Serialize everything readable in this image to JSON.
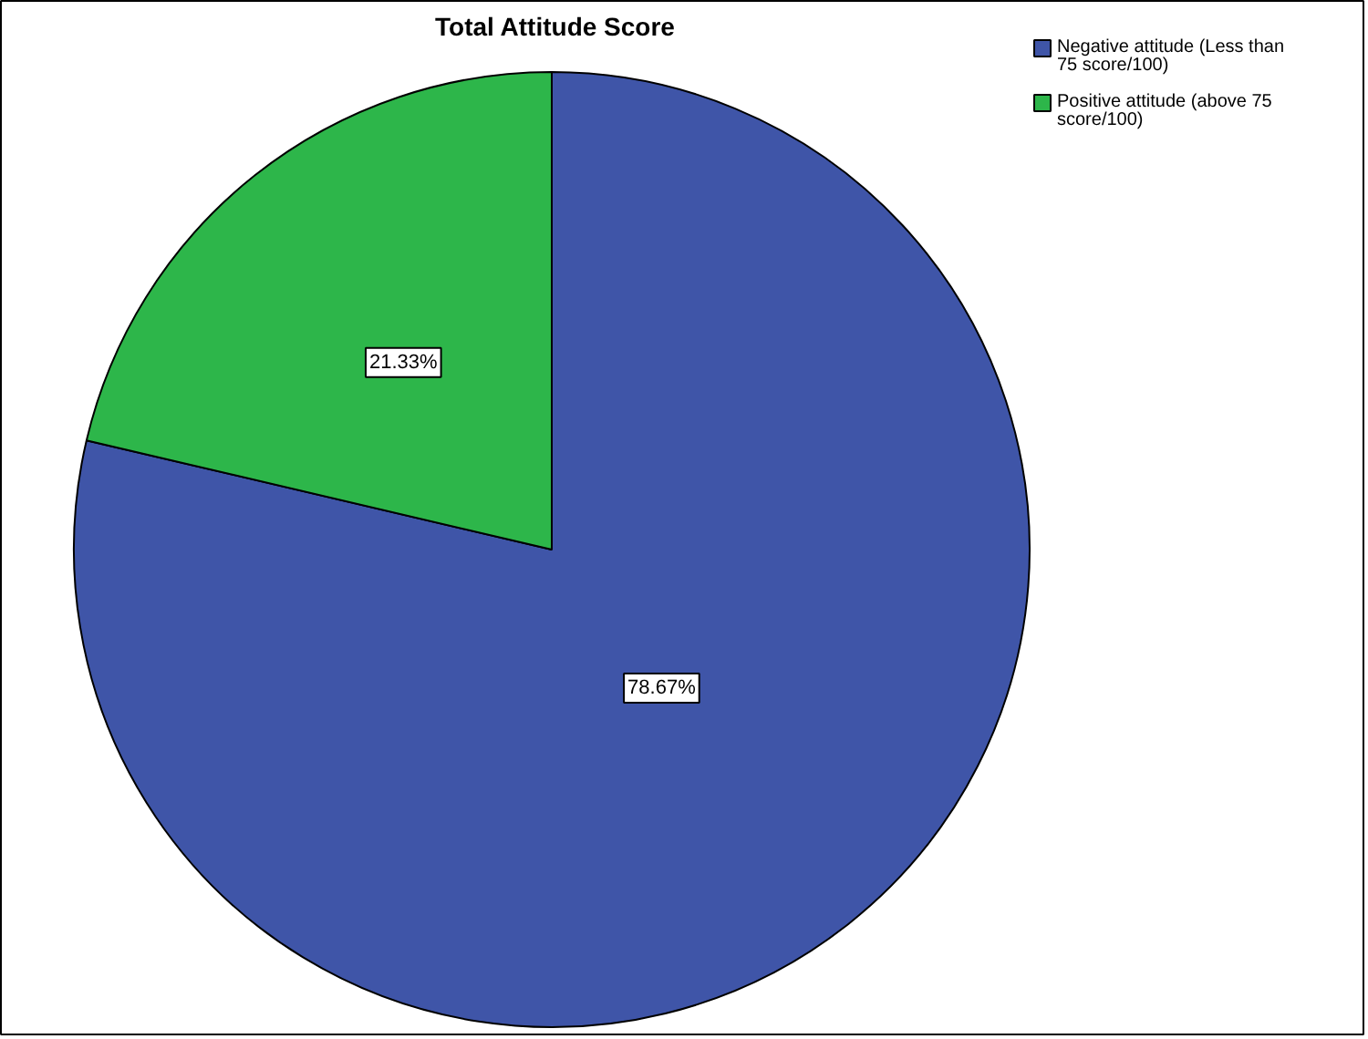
{
  "chart_data": {
    "type": "pie",
    "title": "Total Attitude Score",
    "categories": [
      "Negative attitude (Less than 75 score/100)",
      "Positive attitude (above 75 score/100)"
    ],
    "values": [
      78.67,
      21.33
    ],
    "colors": [
      "#3f55a8",
      "#2db64a"
    ],
    "value_labels": [
      "78.67%",
      "21.33%"
    ],
    "legend": "top right"
  }
}
